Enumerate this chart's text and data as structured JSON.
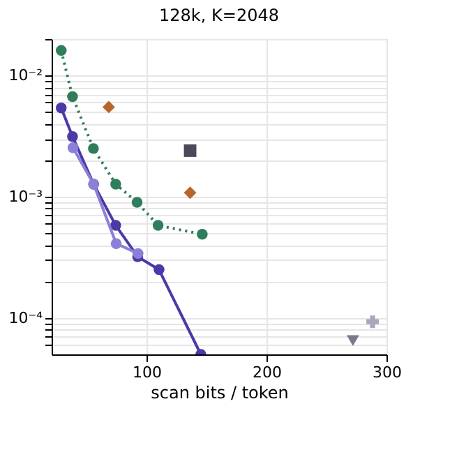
{
  "chart_data": {
    "type": "line",
    "title": "128k, K=2048",
    "xlabel": "scan bits / token",
    "log": "y",
    "grid": true,
    "xlim": [
      21,
      300
    ],
    "xticks": [
      100,
      200,
      300
    ],
    "ylim": [
      5e-05,
      0.02
    ],
    "yticks": [
      {
        "value": 0.01,
        "label": "10⁻²"
      },
      {
        "value": 0.02,
        "label": null
      },
      {
        "value": 0.009,
        "label": null
      },
      {
        "value": 0.008,
        "label": null
      },
      {
        "value": 0.007,
        "label": null
      },
      {
        "value": 0.006,
        "label": null
      },
      {
        "value": 0.005,
        "label": null
      },
      {
        "value": 0.004,
        "label": null
      },
      {
        "value": 0.003,
        "label": null
      },
      {
        "value": 0.002,
        "label": null
      },
      {
        "value": 0.001,
        "label": "10⁻³"
      },
      {
        "value": 0.0009,
        "label": null
      },
      {
        "value": 0.0008,
        "label": null
      },
      {
        "value": 0.0007,
        "label": null
      },
      {
        "value": 0.0006,
        "label": null
      },
      {
        "value": 0.0005,
        "label": null
      },
      {
        "value": 0.0004,
        "label": null
      },
      {
        "value": 0.0003,
        "label": null
      },
      {
        "value": 0.0002,
        "label": null
      },
      {
        "value": 0.0001,
        "label": "10⁻⁴"
      },
      {
        "value": 9e-05,
        "label": null
      },
      {
        "value": 8e-05,
        "label": null
      },
      {
        "value": 7e-05,
        "label": null
      },
      {
        "value": 6e-05,
        "label": null
      }
    ],
    "series": [
      {
        "color": "#2e7d5b",
        "marker": "circle",
        "line_style": "dotted",
        "x": [
          29,
          38.4,
          55.8,
          74.4,
          92.2,
          109.7,
          146.5
        ],
        "values": [
          0.0161,
          0.0067,
          0.0025,
          0.00127,
          0.0009,
          0.00058,
          0.00049
        ]
      },
      {
        "color": "#4a3aa8",
        "marker": "circle",
        "line_style": "solid",
        "x": [
          29,
          38.4,
          56,
          74.4,
          92.7,
          110.5,
          145.3
        ],
        "values": [
          0.0054,
          0.00314,
          0.00127,
          0.00058,
          0.00032,
          0.00025,
          5e-05
        ]
      },
      {
        "color": "#8a80d8",
        "marker": "circle",
        "line_style": "solid",
        "x": [
          38.8,
          56,
          74.8,
          93
        ],
        "values": [
          0.00254,
          0.00127,
          0.00041,
          0.00034
        ]
      },
      {
        "type": "scatter",
        "color": "#b8652a",
        "marker": "diamond",
        "x": [
          68.6,
          136.4
        ],
        "values": [
          0.0055,
          0.00108
        ]
      },
      {
        "type": "scatter",
        "color": "#4a4a5a",
        "marker": "square",
        "x": [
          136.4
        ],
        "values": [
          0.0024
        ]
      },
      {
        "type": "scatter",
        "color": "#a8a8bc",
        "marker": "cross",
        "x": [
          288.4
        ],
        "values": [
          9.3e-05
        ]
      },
      {
        "type": "scatter",
        "color": "#7a7a8a",
        "marker": "triangle",
        "x": [
          272
        ],
        "values": [
          6.5e-05
        ]
      }
    ]
  }
}
